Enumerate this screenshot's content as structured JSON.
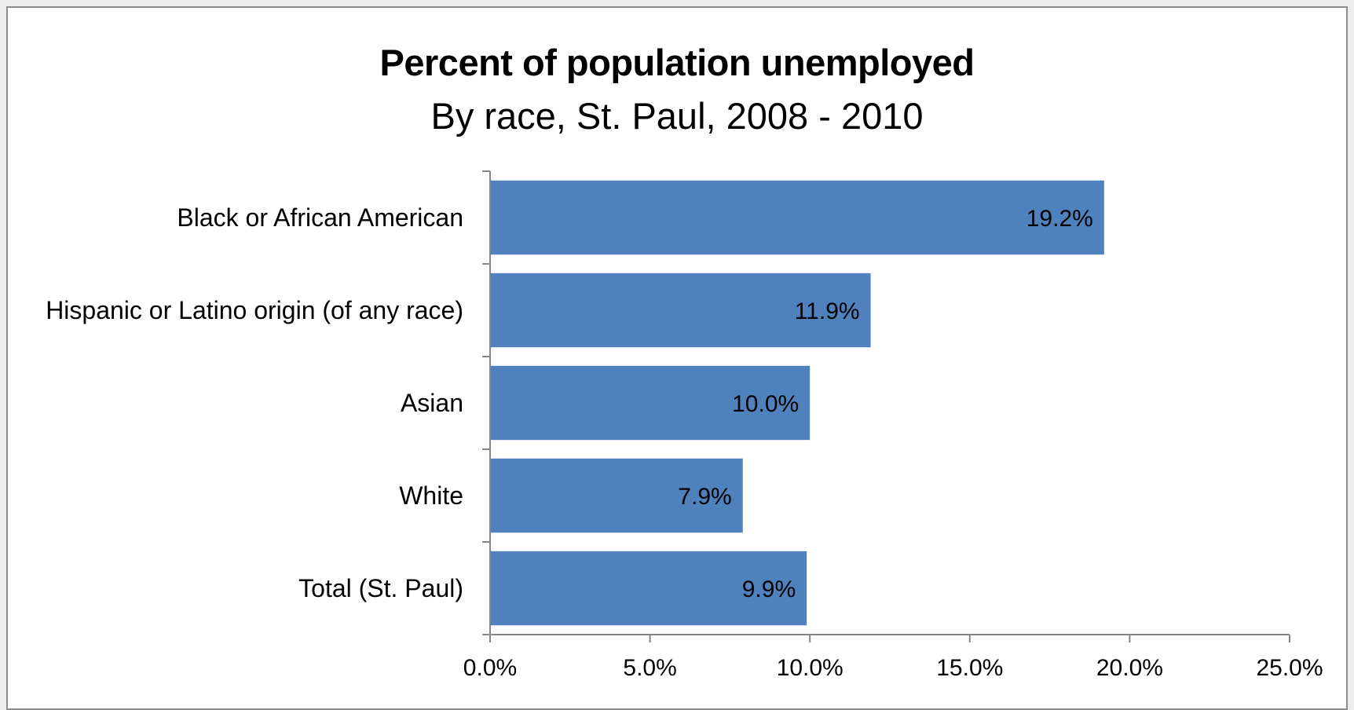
{
  "chart_data": {
    "type": "bar",
    "orientation": "horizontal",
    "title": "Percent of population unemployed",
    "subtitle": "By race, St. Paul, 2008 - 2010",
    "categories": [
      "Black or African American",
      "Hispanic or Latino origin (of any race)",
      "Asian",
      "White",
      "Total (St. Paul)"
    ],
    "values": [
      19.2,
      11.9,
      10.0,
      7.9,
      9.9
    ],
    "data_labels": [
      "19.2%",
      "11.9%",
      "10.0%",
      "7.9%",
      "9.9%"
    ],
    "xlim": [
      0,
      25
    ],
    "xticks": [
      0,
      5,
      10,
      15,
      20,
      25
    ],
    "xtick_labels": [
      "0.0%",
      "5.0%",
      "10.0%",
      "15.0%",
      "20.0%",
      "25.0%"
    ],
    "grid": false,
    "legend": "none",
    "bar_color": "#4f81bd"
  }
}
